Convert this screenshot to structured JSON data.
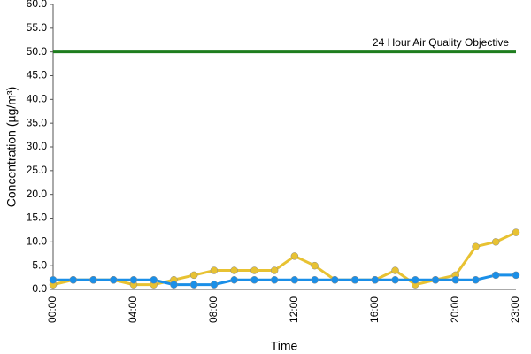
{
  "chart_data": {
    "type": "line",
    "y_label": "Concentration (µg/m³)",
    "x_label": "Time",
    "categories": [
      "00:00",
      null,
      null,
      null,
      "04:00",
      null,
      null,
      null,
      "08:00",
      null,
      null,
      null,
      "12:00",
      null,
      null,
      null,
      "16:00",
      null,
      null,
      null,
      "20:00",
      null,
      null,
      "23:00"
    ],
    "series": [
      {
        "color": "#e8c232",
        "values": [
          1,
          2,
          2,
          2,
          1,
          1,
          2,
          3,
          4,
          4,
          4,
          4,
          7,
          5,
          2,
          2,
          2,
          4,
          1,
          2,
          3,
          9,
          10,
          12
        ]
      },
      {
        "color": "#1a8fe8",
        "values": [
          2,
          2,
          2,
          2,
          2,
          2,
          1,
          1,
          1,
          2,
          2,
          2,
          2,
          2,
          2,
          2,
          2,
          2,
          2,
          2,
          2,
          2,
          3,
          3
        ]
      }
    ],
    "objective": {
      "value": 50,
      "label": "24 Hour Air Quality Objective",
      "color": "#1e7d1e"
    },
    "ylim": [
      0,
      60
    ],
    "yticks": [
      {
        "value": 0,
        "label": "0.0"
      },
      {
        "value": 5,
        "label": "5.0"
      },
      {
        "value": 10,
        "label": "10.0"
      },
      {
        "value": 15,
        "label": "15.0"
      },
      {
        "value": 20,
        "label": "20.0"
      },
      {
        "value": 25,
        "label": "25.0"
      },
      {
        "value": 30,
        "label": "30.0"
      },
      {
        "value": 35,
        "label": "35.0"
      },
      {
        "value": 40,
        "label": "40.0"
      },
      {
        "value": 45,
        "label": "45.0"
      },
      {
        "value": 50,
        "label": "50.0"
      },
      {
        "value": 55,
        "label": "55.0"
      },
      {
        "value": 60,
        "label": "60.0"
      }
    ]
  }
}
